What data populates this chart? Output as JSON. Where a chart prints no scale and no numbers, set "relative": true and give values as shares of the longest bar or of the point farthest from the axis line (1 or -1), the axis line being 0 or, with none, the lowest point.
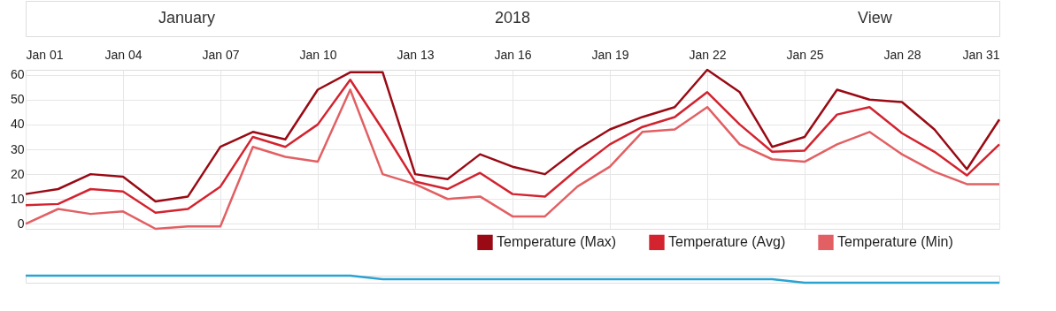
{
  "chart_data": [
    {
      "type": "line",
      "annotations": [
        "January",
        "2018",
        "View"
      ],
      "x": [
        "2018-01-01",
        "2018-01-02",
        "2018-01-03",
        "2018-01-04",
        "2018-01-05",
        "2018-01-06",
        "2018-01-07",
        "2018-01-08",
        "2018-01-09",
        "2018-01-10",
        "2018-01-11",
        "2018-01-12",
        "2018-01-13",
        "2018-01-14",
        "2018-01-15",
        "2018-01-16",
        "2018-01-17",
        "2018-01-18",
        "2018-01-19",
        "2018-01-20",
        "2018-01-21",
        "2018-01-22",
        "2018-01-23",
        "2018-01-24",
        "2018-01-25",
        "2018-01-26",
        "2018-01-27",
        "2018-01-28",
        "2018-01-29",
        "2018-01-30",
        "2018-01-31"
      ],
      "xlim": [
        "2018-01-01",
        "2018-01-31"
      ],
      "xticks": [
        {
          "value": "2018-01-01",
          "label": "Jan 01"
        },
        {
          "value": "2018-01-04",
          "label": "Jan 04"
        },
        {
          "value": "2018-01-07",
          "label": "Jan 07"
        },
        {
          "value": "2018-01-10",
          "label": "Jan 10"
        },
        {
          "value": "2018-01-13",
          "label": "Jan 13"
        },
        {
          "value": "2018-01-16",
          "label": "Jan 16"
        },
        {
          "value": "2018-01-19",
          "label": "Jan 19"
        },
        {
          "value": "2018-01-22",
          "label": "Jan 22"
        },
        {
          "value": "2018-01-25",
          "label": "Jan 25"
        },
        {
          "value": "2018-01-28",
          "label": "Jan 28"
        },
        {
          "value": "2018-01-31",
          "label": "Jan 31"
        }
      ],
      "ylim": [
        -2,
        62
      ],
      "yticks": [
        0,
        10,
        20,
        30,
        40,
        50,
        60
      ],
      "series": [
        {
          "name": "Temperature (Max)",
          "color": "#990a14",
          "values": [
            12,
            14,
            20,
            19,
            9,
            11,
            31,
            37,
            34,
            54,
            61,
            61,
            20,
            18,
            28,
            23,
            20,
            30,
            38,
            43,
            47,
            62,
            53,
            31,
            35,
            54,
            50,
            49,
            38,
            22,
            42
          ]
        },
        {
          "name": "Temperature (Avg)",
          "color": "#d3232f",
          "values": [
            7.5,
            8,
            14,
            13,
            4.5,
            6,
            15,
            35,
            31,
            40,
            58,
            38,
            17,
            14,
            20.5,
            12,
            11,
            22,
            32,
            39,
            43,
            53,
            40,
            29,
            29.5,
            44,
            47,
            36.5,
            29,
            19.5,
            32
          ]
        },
        {
          "name": "Temperature (Min)",
          "color": "#e26063",
          "values": [
            0,
            6,
            4,
            5,
            -2,
            -1,
            -1,
            31,
            27,
            25,
            54,
            20,
            16,
            10,
            11,
            3,
            3,
            15,
            23,
            37,
            38,
            47,
            32,
            26,
            25,
            32,
            37,
            28,
            21,
            16,
            16
          ]
        }
      ],
      "grid": true,
      "legend": "bottom right",
      "marker": "none",
      "line_style": "solid"
    },
    {
      "type": "line",
      "relative": true,
      "categories": [
        null,
        null,
        null,
        null,
        null,
        null,
        null,
        null,
        null,
        null,
        null,
        null,
        null,
        null,
        null,
        null,
        null,
        null,
        null,
        null,
        null,
        null,
        null,
        null,
        null,
        null,
        null,
        null,
        null,
        null,
        null
      ],
      "series": [
        {
          "color": "#2ba3d2",
          "values": [
            1,
            1,
            1,
            1,
            1,
            1,
            1,
            1,
            1,
            1,
            1,
            0.5,
            0.5,
            0.5,
            0.5,
            0.5,
            0.5,
            0.5,
            0.5,
            0.5,
            0.5,
            0.5,
            0.5,
            0.5,
            0,
            0,
            0,
            0,
            0,
            0,
            0
          ]
        }
      ],
      "grid": false,
      "legend": false,
      "tick_labels": false
    }
  ]
}
